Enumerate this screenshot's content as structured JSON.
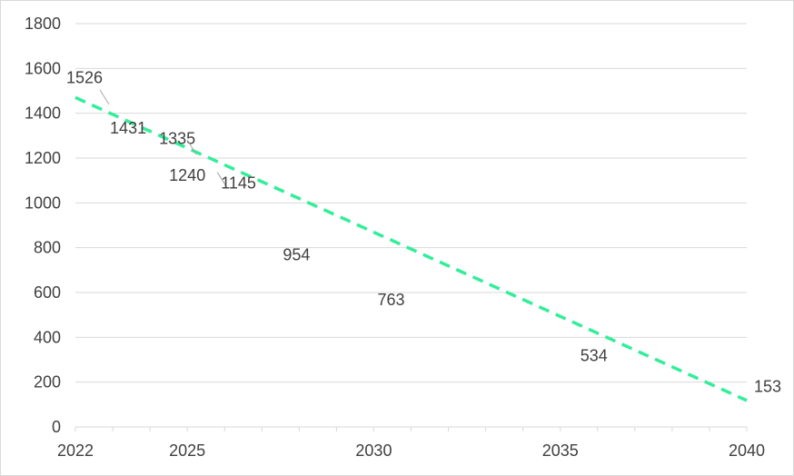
{
  "chart_data": {
    "type": "line",
    "title": "",
    "xlabel": "",
    "ylabel": "",
    "xlim": [
      2022,
      2040
    ],
    "ylim": [
      0,
      1800
    ],
    "x_ticks": [
      "2022",
      "2025",
      "2030",
      "2035",
      "2040"
    ],
    "y_ticks": [
      "0",
      "200",
      "400",
      "600",
      "800",
      "1000",
      "1200",
      "1400",
      "1600",
      "1800"
    ],
    "grid": "horizontal",
    "legend": "none",
    "series": [
      {
        "color": "#33ee99",
        "style": "dashed",
        "x": [
          2022,
          2040
        ],
        "y": [
          1470,
          118
        ]
      }
    ],
    "data_labels": [
      {
        "text": "1526",
        "x": 2022,
        "y": 1526
      },
      {
        "text": "1431",
        "x": 2023,
        "y": 1431
      },
      {
        "text": "1335",
        "x": 2024,
        "y": 1335
      },
      {
        "text": "1240",
        "x": 2025,
        "y": 1240
      },
      {
        "text": "1145",
        "x": 2026,
        "y": 1145
      },
      {
        "text": "954",
        "x": 2028,
        "y": 954
      },
      {
        "text": "763",
        "x": 2030,
        "y": 763
      },
      {
        "text": "534",
        "x": 2035,
        "y": 534
      },
      {
        "text": "153",
        "x": 2040,
        "y": 153
      }
    ]
  }
}
